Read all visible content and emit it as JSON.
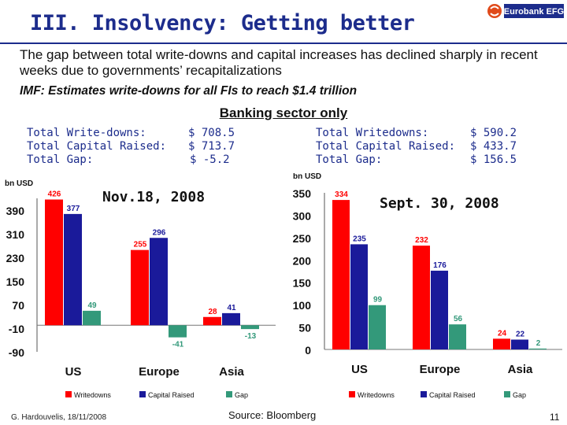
{
  "title": "III.  Insolvency: Getting better",
  "logo_text": "Eurobank EFG",
  "intro": "The gap between total write-downs and capital increases has declined sharply in recent weeks due to  governments’ recapitalizations",
  "imf_note": "IMF: Estimates write-downs for all FIs to reach $1.4 trillion",
  "banking_label": "Banking sector only",
  "totals_left": [
    {
      "label": "Total Write-downs:",
      "value": "$ 708.5"
    },
    {
      "label": "Total Capital Raised:",
      "value": "$ 713.7"
    },
    {
      "label": "Total Gap:",
      "value": "$ -5.2"
    }
  ],
  "totals_right": [
    {
      "label": "Total Writedowns:",
      "value": "$ 590.2"
    },
    {
      "label": "Total Capital Raised:",
      "value": "$ 433.7"
    },
    {
      "label": "Total Gap:",
      "value": "$ 156.5"
    }
  ],
  "footer_author": "G. Hardouvelis, 18/11/2008",
  "source": "Source: Bloomberg",
  "page_number": "11",
  "colors": {
    "writedowns": "#ff0000",
    "capital": "#1a1a9a",
    "gap": "#33997a",
    "title": "#1c2c8c"
  },
  "chart_data": [
    {
      "type": "bar",
      "title": "Nov.18, 2008",
      "ylabel": "bn USD",
      "ylim": [
        -90,
        430
      ],
      "yticks": [
        390,
        310,
        230,
        150,
        70,
        -10,
        -90
      ],
      "categories": [
        "US",
        "Europe",
        "Asia"
      ],
      "series": [
        {
          "name": "Writedowns",
          "values": [
            426,
            255,
            28
          ],
          "labels": [
            "426",
            "255",
            "28"
          ]
        },
        {
          "name": "Capital Raised",
          "values": [
            377,
            296,
            41
          ],
          "labels": [
            "377",
            "296",
            "41"
          ]
        },
        {
          "name": "Gap",
          "values": [
            49,
            -41,
            -13
          ],
          "labels": [
            "49",
            "-41",
            "-13"
          ]
        }
      ],
      "legend": [
        "Writedowns",
        "Capital Raised",
        "Gap"
      ]
    },
    {
      "type": "bar",
      "title": "Sept. 30, 2008",
      "ylabel": "bn USD",
      "ylim": [
        0,
        350
      ],
      "yticks": [
        350,
        300,
        250,
        200,
        150,
        100,
        50,
        0
      ],
      "categories": [
        "US",
        "Europe",
        "Asia"
      ],
      "series": [
        {
          "name": "Writedowns",
          "values": [
            334,
            232,
            24
          ],
          "labels": [
            "334",
            "232",
            "24"
          ]
        },
        {
          "name": "Capital Raised",
          "values": [
            235,
            176,
            22
          ],
          "labels": [
            "235",
            "176",
            "22"
          ]
        },
        {
          "name": "Gap",
          "values": [
            99,
            56,
            2
          ],
          "labels": [
            "99",
            "56",
            "2"
          ]
        }
      ],
      "legend": [
        "Writedowns",
        "Capital Raised",
        "Gap"
      ]
    }
  ]
}
